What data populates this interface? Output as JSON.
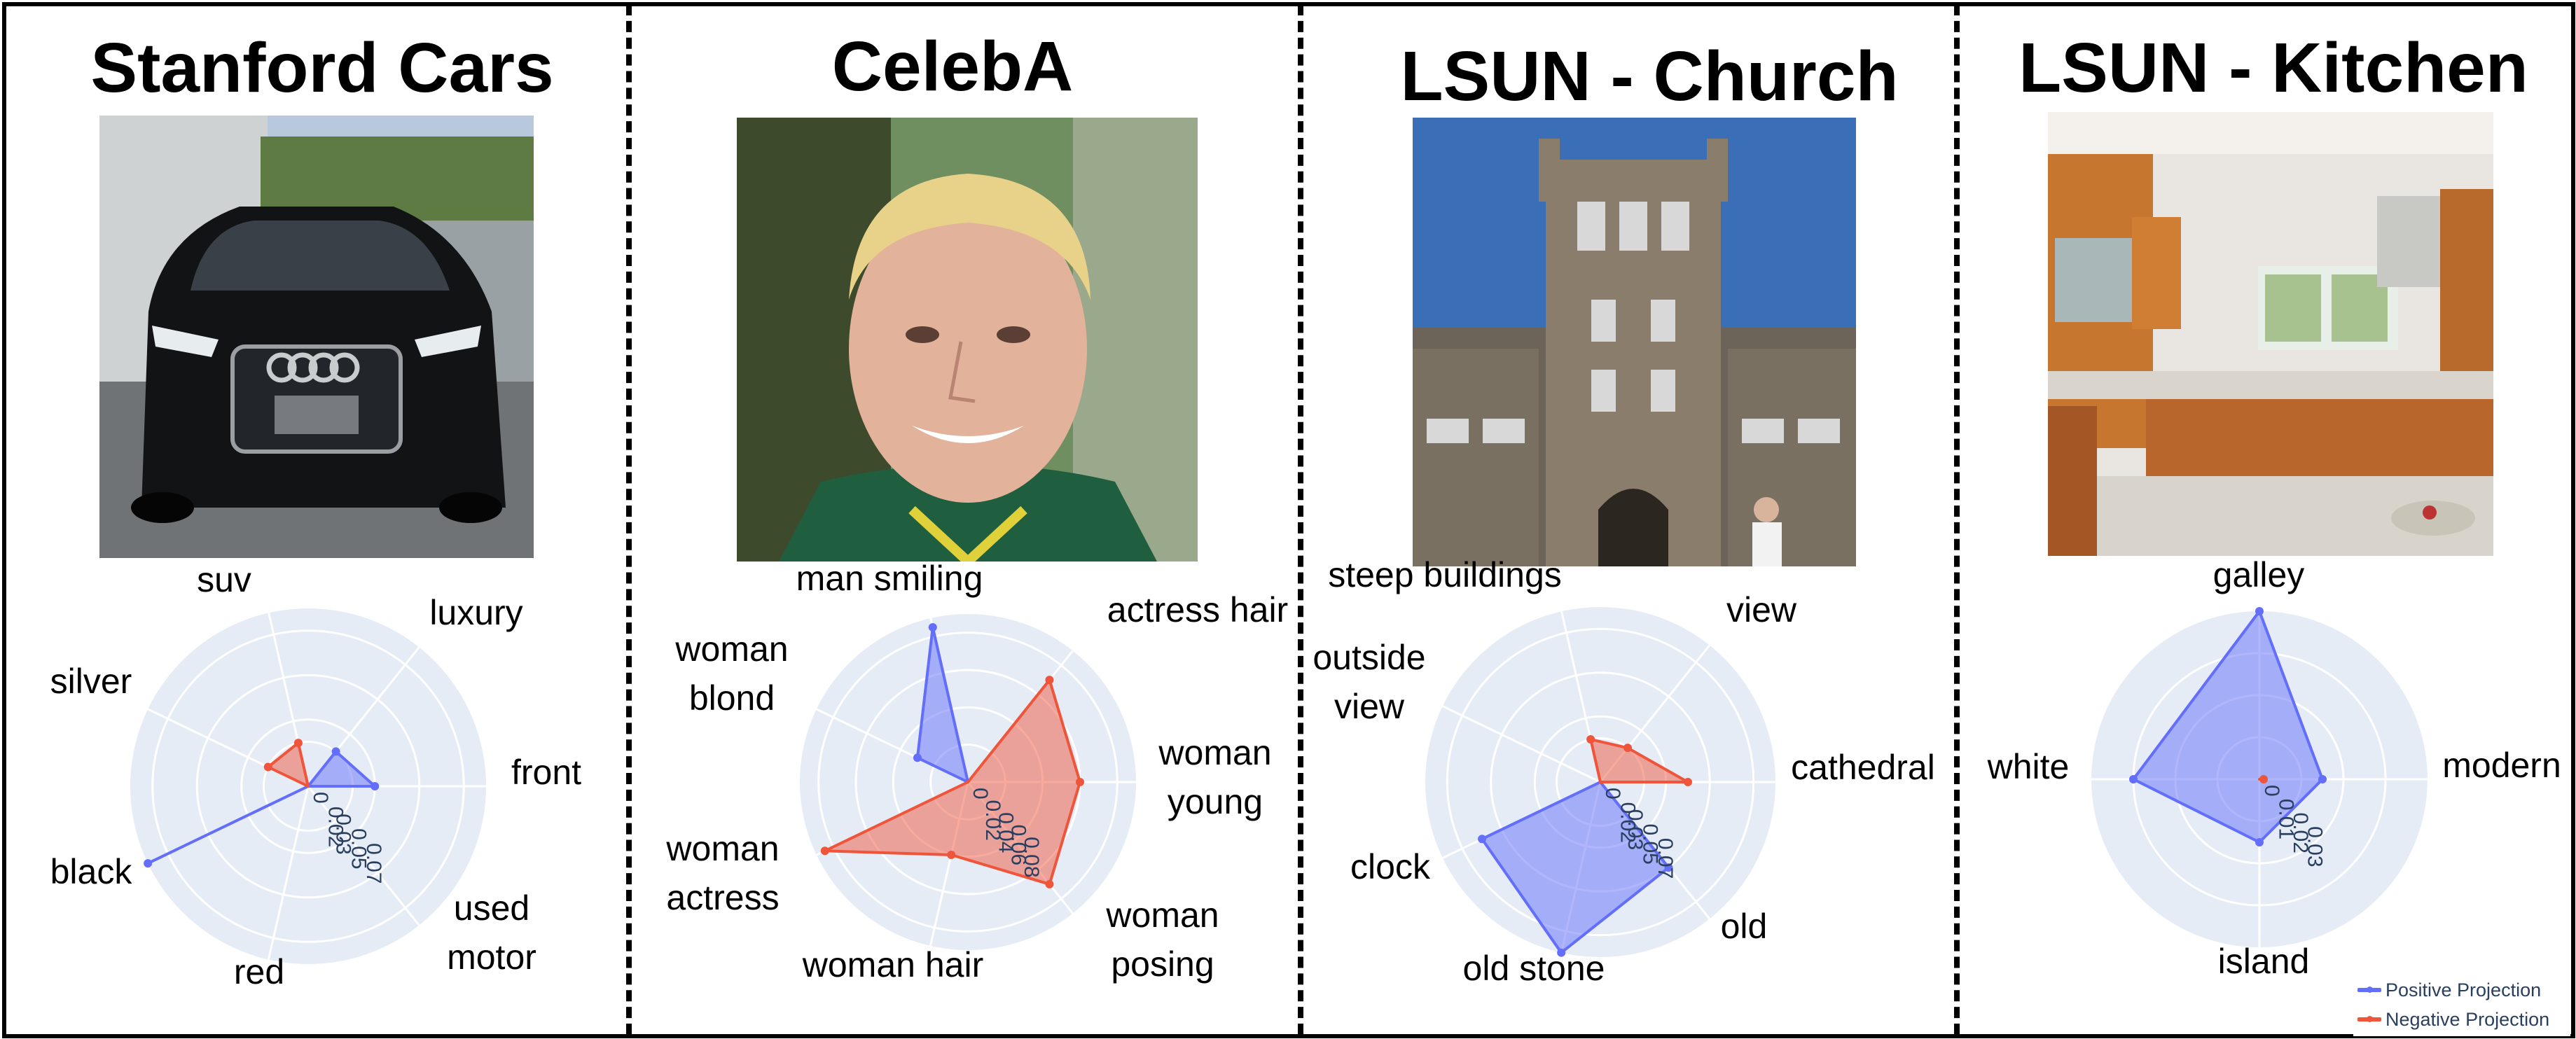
{
  "figure": {
    "panels": [
      {
        "title": "Stanford Cars",
        "image": "car-photo"
      },
      {
        "title": "CelebA",
        "image": "face-photo"
      },
      {
        "title": "LSUN - Church",
        "image": "church-photo"
      },
      {
        "title": "LSUN - Kitchen",
        "image": "kitchen-photo"
      }
    ],
    "legend": {
      "positive_label": "Positive Projection",
      "negative_label": "Negative Projection"
    },
    "colors": {
      "positive": "#636efa",
      "negative": "#ef553b",
      "polar_bg": "#e5ecf6",
      "tick_text": "#2a3f5f"
    }
  },
  "chart_data": [
    {
      "type": "radar",
      "title": "Stanford Cars",
      "categories": [
        "front",
        "luxury",
        "suv",
        "silver",
        "black",
        "red",
        "used\nmotor"
      ],
      "radial_ticks": [
        0,
        0.02,
        0.03,
        0.05,
        0.07
      ],
      "radial_range": [
        0,
        0.08
      ],
      "series": [
        {
          "name": "Positive Projection",
          "values": [
            0.03,
            0.02,
            0,
            0,
            0.08,
            0,
            0
          ]
        },
        {
          "name": "Negative Projection",
          "values": [
            0,
            0,
            0.02,
            0.02,
            0,
            0,
            0
          ]
        }
      ]
    },
    {
      "type": "radar",
      "title": "CelebA",
      "categories": [
        "woman\nyoung",
        "actress hair",
        "man smiling",
        "woman\nblond",
        "woman\nactress",
        "woman hair",
        "woman\nposing"
      ],
      "radial_ticks": [
        0,
        0.02,
        0.04,
        0.06,
        0.08
      ],
      "radial_range": [
        0,
        0.09
      ],
      "series": [
        {
          "name": "Positive Projection",
          "values": [
            0,
            0,
            0.085,
            0.03,
            0,
            0,
            0
          ]
        },
        {
          "name": "Negative Projection",
          "values": [
            0.06,
            0.07,
            0,
            0,
            0.085,
            0.04,
            0.07
          ]
        }
      ]
    },
    {
      "type": "radar",
      "title": "LSUN - Church",
      "categories": [
        "cathedral",
        "view",
        "steep buildings",
        "outside\nview",
        "clock",
        "old stone",
        "old"
      ],
      "radial_ticks": [
        0,
        0.02,
        0.03,
        0.05,
        0.07
      ],
      "radial_range": [
        0,
        0.08
      ],
      "series": [
        {
          "name": "Positive Projection",
          "values": [
            0,
            0,
            0,
            0,
            0.06,
            0.08,
            0.05
          ]
        },
        {
          "name": "Negative Projection",
          "values": [
            0.04,
            0.02,
            0.02,
            0,
            0,
            0,
            0
          ]
        }
      ]
    },
    {
      "type": "radar",
      "title": "LSUN - Kitchen",
      "categories": [
        "modern",
        "galley",
        "white",
        "island"
      ],
      "radial_ticks": [
        0,
        0.01,
        0.02,
        0.03
      ],
      "radial_range": [
        0,
        0.04
      ],
      "series": [
        {
          "name": "Positive Projection",
          "values": [
            0.015,
            0.04,
            0.03,
            0.015
          ]
        },
        {
          "name": "Negative Projection",
          "values": [
            0.001,
            0,
            0,
            0
          ]
        }
      ]
    }
  ]
}
